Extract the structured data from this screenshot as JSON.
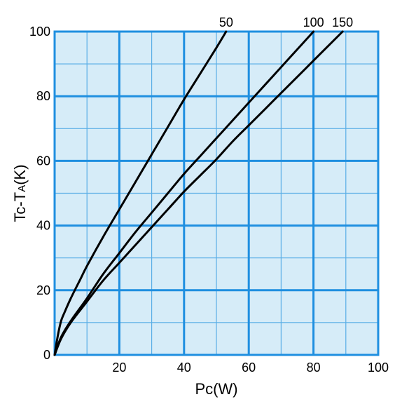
{
  "chart_data": {
    "type": "line",
    "title": "",
    "xlabel": {
      "main": "Pc",
      "sub": "",
      "unit": "(W)"
    },
    "ylabel": {
      "main": "Tc",
      "sep": "-",
      "main2": "T",
      "sub": "A",
      "unit": "(K)"
    },
    "xlim": [
      0,
      100
    ],
    "ylim": [
      0,
      100
    ],
    "xticks": [
      {
        "value": 0,
        "label": "0"
      },
      {
        "value": 20,
        "label": "20"
      },
      {
        "value": 40,
        "label": "40"
      },
      {
        "value": 60,
        "label": "60"
      },
      {
        "value": 80,
        "label": "80"
      },
      {
        "value": 100,
        "label": "100"
      }
    ],
    "yticks": [
      {
        "value": 0,
        "label": "0"
      },
      {
        "value": 20,
        "label": "20"
      },
      {
        "value": 40,
        "label": "40"
      },
      {
        "value": 60,
        "label": "60"
      },
      {
        "value": 80,
        "label": "80"
      },
      {
        "value": 100,
        "label": "100"
      }
    ],
    "grid": {
      "major": 20,
      "minor": 10
    },
    "colors": {
      "background": "#d6ecf8",
      "grid_major": "#1f8fe0",
      "grid_minor": "#5aaee6",
      "line": "#000000",
      "frame": "#1f8fe0"
    },
    "series": [
      {
        "name": "50",
        "x": [
          0,
          1,
          2,
          3,
          5,
          8,
          10,
          15,
          20,
          25,
          30,
          35,
          40,
          45,
          50,
          53
        ],
        "y": [
          0,
          6,
          10.5,
          13,
          17.5,
          23.5,
          27.5,
          36.5,
          45,
          53.5,
          62,
          70.5,
          79,
          87,
          95,
          100
        ]
      },
      {
        "name": "100",
        "x": [
          0,
          2,
          5,
          10,
          15,
          20,
          25,
          30,
          35,
          40,
          45,
          50,
          55,
          60,
          65,
          70,
          75,
          80
        ],
        "y": [
          0,
          5.5,
          10.5,
          17.5,
          25,
          31.5,
          38,
          44,
          50,
          56,
          61.5,
          67,
          72.5,
          78,
          83.5,
          89,
          94.5,
          100
        ]
      },
      {
        "name": "150",
        "x": [
          0,
          2,
          5,
          10,
          15,
          20,
          25,
          30,
          35,
          40,
          45,
          50,
          55,
          60,
          65,
          70,
          75,
          80,
          85,
          89
        ],
        "y": [
          0,
          5,
          10,
          16.5,
          23,
          28.5,
          34,
          39.5,
          45,
          50.5,
          55.5,
          60.5,
          66,
          71,
          76,
          81,
          86,
          91,
          96,
          100
        ]
      }
    ]
  }
}
